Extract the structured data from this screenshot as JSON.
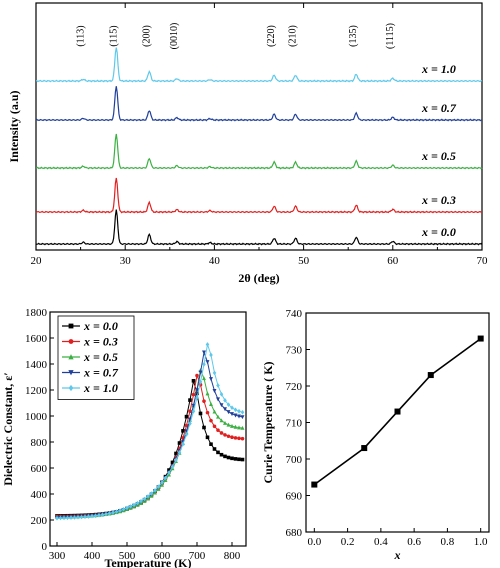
{
  "chart_data": [
    {
      "type": "line",
      "chart": "xrd",
      "xlabel": "2θ (deg)",
      "ylabel": "Intensity (a.u)",
      "xlim": [
        20,
        70
      ],
      "xticks": [
        20,
        30,
        40,
        50,
        60,
        70
      ],
      "peak_labels": [
        {
          "label": "(113)",
          "x": 25.3
        },
        {
          "label": "(115)",
          "x": 29.0
        },
        {
          "label": "(200)",
          "x": 32.7
        },
        {
          "label": "(0010)",
          "x": 35.8
        },
        {
          "label": "(220)",
          "x": 46.7
        },
        {
          "label": "(210)",
          "x": 49.1
        },
        {
          "label": "(135)",
          "x": 55.9
        },
        {
          "label": "(1115)",
          "x": 60.0
        }
      ],
      "peaks": [
        {
          "x": 25.3,
          "height": 0.05
        },
        {
          "x": 29.0,
          "height": 1.0
        },
        {
          "x": 32.7,
          "height": 0.28
        },
        {
          "x": 35.8,
          "height": 0.07
        },
        {
          "x": 39.5,
          "height": 0.04
        },
        {
          "x": 46.7,
          "height": 0.17
        },
        {
          "x": 49.1,
          "height": 0.17
        },
        {
          "x": 55.9,
          "height": 0.2
        },
        {
          "x": 60.0,
          "height": 0.08
        }
      ],
      "series": [
        {
          "name": "x = 0.0",
          "color": "#000000"
        },
        {
          "name": "x = 0.3",
          "color": "#e02020"
        },
        {
          "name": "x = 0.5",
          "color": "#3cb043"
        },
        {
          "name": "x = 0.7",
          "color": "#1f3f9a"
        },
        {
          "name": "x = 1.0",
          "color": "#5ec8ea"
        }
      ],
      "grid": false
    },
    {
      "type": "line",
      "chart": "dielectric",
      "xlabel": "Temperature (K)",
      "ylabel": "Dielectric Constant, ε′",
      "xlim": [
        280,
        840
      ],
      "ylim": [
        0,
        1800
      ],
      "xticks": [
        300,
        400,
        500,
        600,
        700,
        800
      ],
      "yticks": [
        0,
        200,
        400,
        600,
        800,
        1000,
        1200,
        1400,
        1600,
        1800
      ],
      "legend": "top-left",
      "series": [
        {
          "name": "x = 0.0",
          "color": "#000000",
          "marker": "square",
          "curie": 693,
          "peak": 1320,
          "base": 230,
          "end": 660
        },
        {
          "name": "x = 0.3",
          "color": "#e02020",
          "marker": "circle",
          "curie": 703,
          "peak": 1360,
          "base": 225,
          "end": 820
        },
        {
          "name": "x = 0.5",
          "color": "#3cb043",
          "marker": "triangle-up",
          "curie": 713,
          "peak": 1400,
          "base": 220,
          "end": 900
        },
        {
          "name": "x = 0.7",
          "color": "#1f3f9a",
          "marker": "triangle-down",
          "curie": 723,
          "peak": 1540,
          "base": 215,
          "end": 980
        },
        {
          "name": "x = 1.0",
          "color": "#5ec8ea",
          "marker": "diamond",
          "curie": 733,
          "peak": 1600,
          "base": 210,
          "end": 1010
        }
      ],
      "grid": false
    },
    {
      "type": "line",
      "chart": "curie",
      "xlabel": "x",
      "ylabel": "Curie Temperature ( K)",
      "xlim": [
        -0.05,
        1.05
      ],
      "ylim": [
        680,
        740
      ],
      "xticks": [
        0.0,
        0.2,
        0.4,
        0.6,
        0.8,
        1.0
      ],
      "yticks": [
        680,
        690,
        700,
        710,
        720,
        730,
        740
      ],
      "x": [
        0.0,
        0.3,
        0.5,
        0.7,
        1.0
      ],
      "y": [
        693,
        703,
        713,
        723,
        733
      ],
      "color": "#000000",
      "marker": "square",
      "grid": false
    }
  ]
}
